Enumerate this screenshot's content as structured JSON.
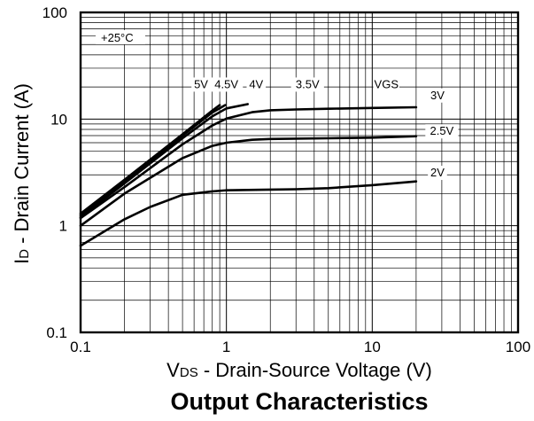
{
  "chart_data": {
    "type": "line",
    "title": "Output Characteristics",
    "xlabel_main": "V",
    "xlabel_sub": "DS",
    "xlabel_rest": " - Drain-Source Voltage (V)",
    "ylabel_main": "I",
    "ylabel_sub": "D",
    "ylabel_rest": " - Drain Current (A)",
    "xscale": "log",
    "yscale": "log",
    "xlim": [
      0.1,
      100
    ],
    "ylim": [
      0.1,
      100
    ],
    "xticks": [
      "0.1",
      "1",
      "10",
      "100"
    ],
    "yticks": [
      "0.1",
      "1",
      "10",
      "100"
    ],
    "x_tick_values": [
      0.1,
      1,
      10,
      100
    ],
    "y_tick_values": [
      0.1,
      1,
      10,
      100
    ],
    "grid": true,
    "annotation": "+25°C",
    "vgs_label": "VGS",
    "series": [
      {
        "name": "5V",
        "points": [
          [
            0.1,
            1.3
          ],
          [
            0.2,
            2.7
          ],
          [
            0.5,
            7.2
          ],
          [
            0.8,
            12.0
          ],
          [
            0.9,
            13.5
          ]
        ]
      },
      {
        "name": "4.5V",
        "points": [
          [
            0.1,
            1.25
          ],
          [
            0.2,
            2.6
          ],
          [
            0.5,
            7.0
          ],
          [
            0.8,
            11.5
          ],
          [
            0.98,
            13.5
          ]
        ]
      },
      {
        "name": "4V",
        "points": [
          [
            0.1,
            1.2
          ],
          [
            0.2,
            2.5
          ],
          [
            0.5,
            6.6
          ],
          [
            0.8,
            10.6
          ],
          [
            1.0,
            12.6
          ],
          [
            1.4,
            13.8
          ]
        ]
      },
      {
        "name": "3.5V",
        "points": [
          [
            0.1,
            1.18
          ],
          [
            0.2,
            2.3
          ],
          [
            0.5,
            5.8
          ],
          [
            0.8,
            8.7
          ],
          [
            1.0,
            10.1
          ],
          [
            1.5,
            11.6
          ],
          [
            2.0,
            12.1
          ],
          [
            3.0,
            12.3
          ],
          [
            5.0,
            12.5
          ],
          [
            10.0,
            12.7
          ],
          [
            20.0,
            12.9
          ]
        ]
      },
      {
        "name": "3V",
        "points": [
          [
            0.1,
            1.0
          ],
          [
            0.2,
            2.0
          ],
          [
            0.5,
            4.3
          ],
          [
            0.8,
            5.6
          ],
          [
            1.0,
            6.0
          ],
          [
            1.5,
            6.4
          ],
          [
            2.0,
            6.5
          ],
          [
            5.0,
            6.6
          ],
          [
            10.0,
            6.7
          ],
          [
            20.0,
            6.9
          ]
        ]
      },
      {
        "name": "2V",
        "points": [
          [
            0.1,
            0.65
          ],
          [
            0.2,
            1.15
          ],
          [
            0.3,
            1.5
          ],
          [
            0.5,
            1.95
          ],
          [
            0.8,
            2.1
          ],
          [
            1.0,
            2.15
          ],
          [
            2.0,
            2.18
          ],
          [
            3.0,
            2.2
          ],
          [
            5.0,
            2.25
          ],
          [
            10.0,
            2.4
          ],
          [
            20.0,
            2.6
          ]
        ]
      }
    ],
    "curve_labels": [
      {
        "text": "5V",
        "x": 0.67,
        "y": 19.5
      },
      {
        "text": "4.5V",
        "x": 1.0,
        "y": 19.5
      },
      {
        "text": "4V",
        "x": 1.6,
        "y": 19.5
      },
      {
        "text": "3.5V",
        "x": 3.6,
        "y": 19.5
      },
      {
        "text": "VGS",
        "x": 12.5,
        "y": 19.5
      },
      {
        "text": "3V",
        "x": 28.0,
        "y": 15.4
      },
      {
        "text": "2.5V",
        "x": 30.0,
        "y": 7.1
      },
      {
        "text": "2V",
        "x": 28.0,
        "y": 2.9
      }
    ]
  }
}
